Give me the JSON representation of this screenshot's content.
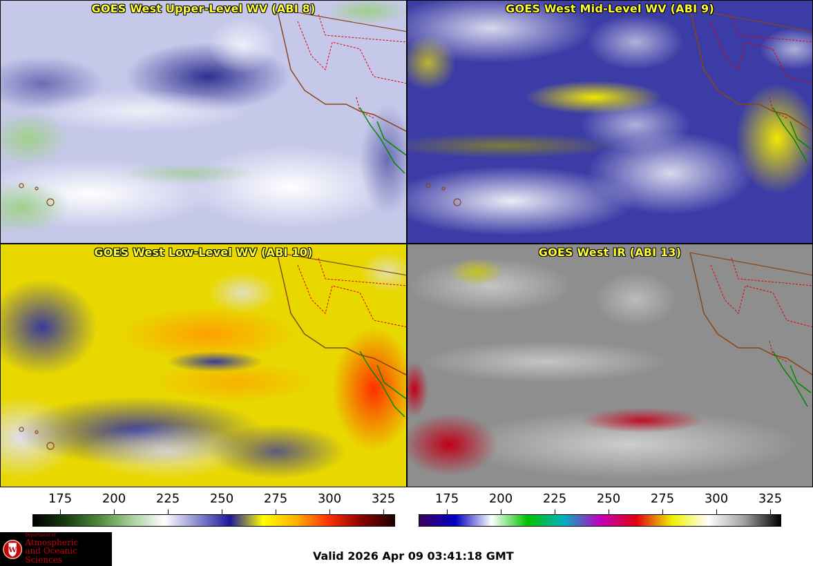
{
  "panels": [
    {
      "title": "GOES West Upper-Level WV (ABI 8)"
    },
    {
      "title": "GOES West Mid-Level WV (ABI 9)"
    },
    {
      "title": "GOES West Low-Level WV (ABI 10)"
    },
    {
      "title": "GOES West IR (ABI 13)"
    }
  ],
  "colorbars": [
    {
      "ticks": [
        "175",
        "200",
        "225",
        "250",
        "275",
        "300",
        "325"
      ],
      "colors": [
        "#000000",
        "#1a3a12",
        "#4c8a3a",
        "#a9cf9a",
        "#ffffff",
        "#8c8cd0",
        "#1a1a9a",
        "#ffff00",
        "#ffb000",
        "#ff3000",
        "#8a0000",
        "#200000"
      ]
    },
    {
      "ticks": [
        "175",
        "200",
        "225",
        "250",
        "275",
        "300",
        "325"
      ],
      "colors": [
        "#3a0060",
        "#0000c0",
        "#ffffff",
        "#00c000",
        "#00b0c0",
        "#c000c0",
        "#e00010",
        "#f0f000",
        "#ffffff",
        "#a0a0a0",
        "#000000"
      ]
    }
  ],
  "footer": {
    "dept_label": "Department of",
    "dept_name_1": "Atmospheric",
    "dept_name_2": "and Oceanic Sciences",
    "valid_time": "Valid 2026 Apr 09 03:41:18 GMT"
  },
  "colors": {
    "title_text": "#ffff33",
    "logo_bg": "#000000",
    "logo_text": "#c5050c"
  }
}
